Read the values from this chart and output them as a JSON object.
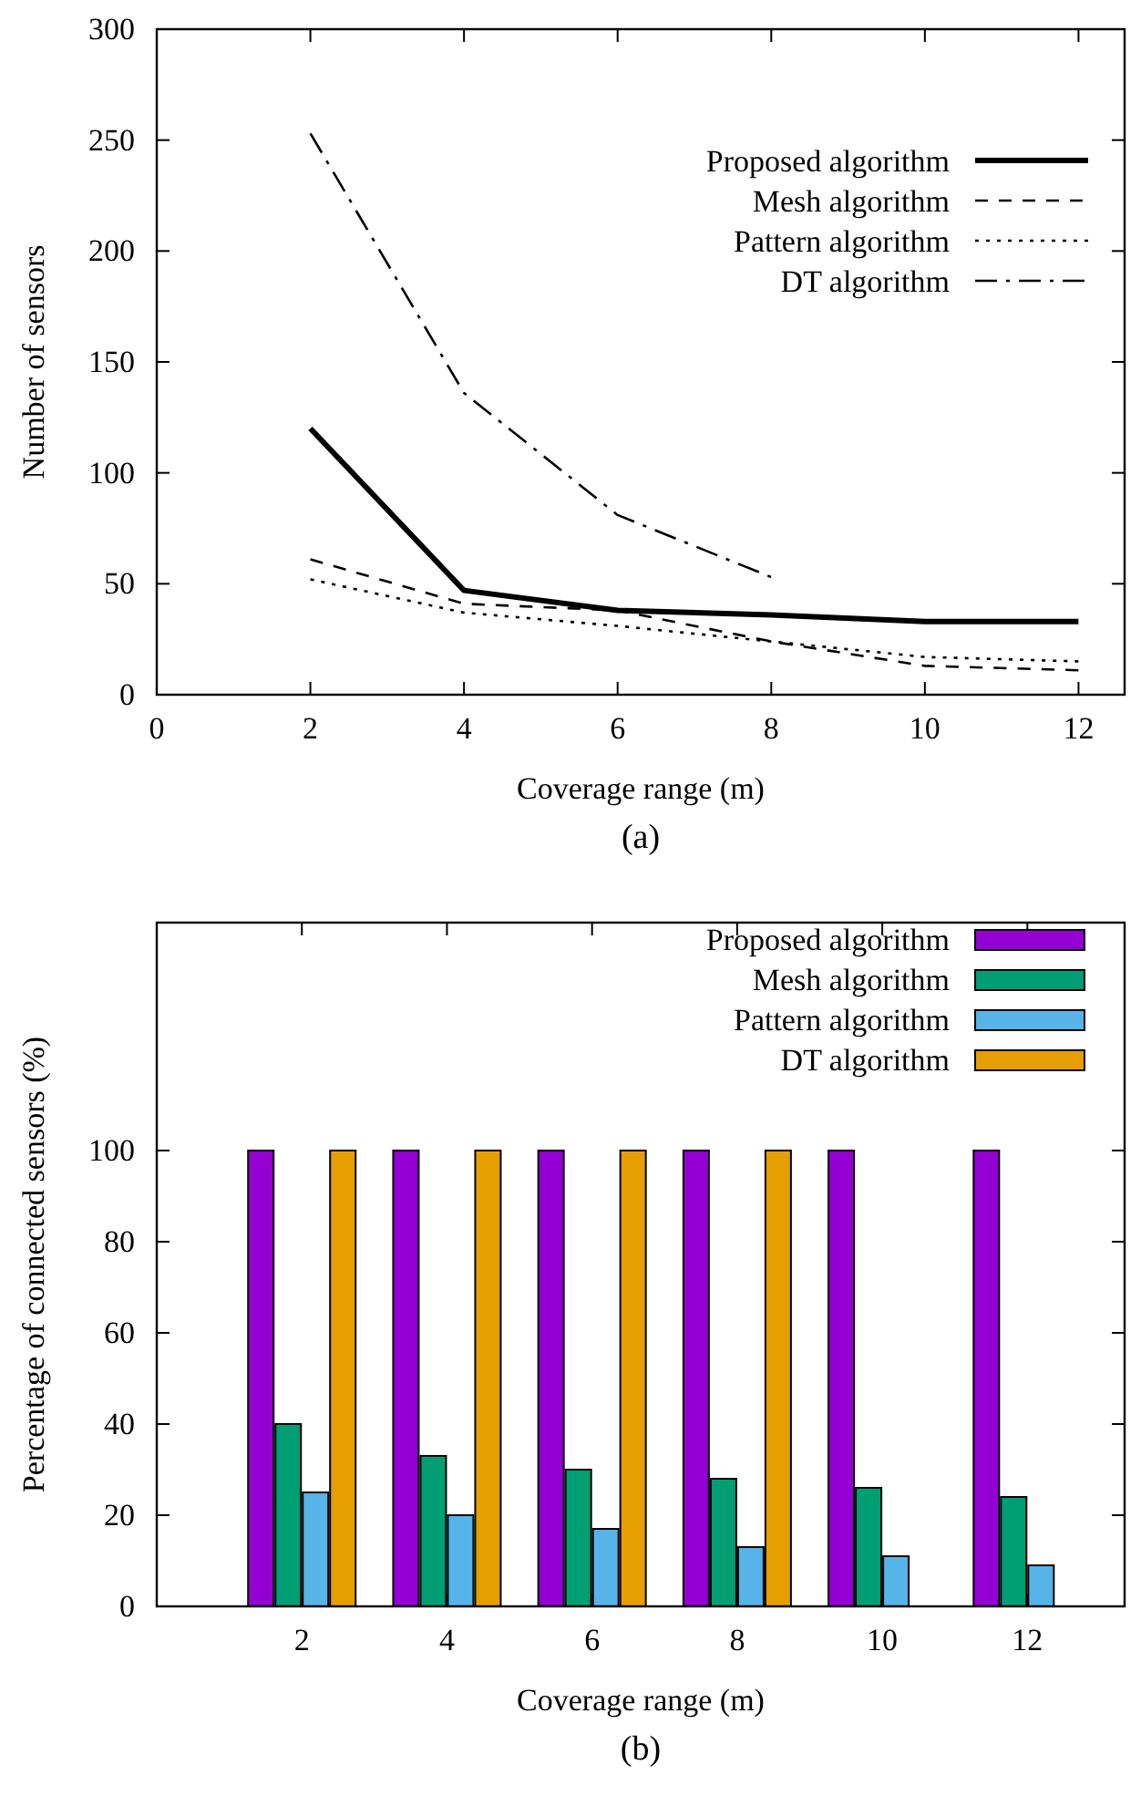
{
  "chart_data": [
    {
      "type": "line",
      "xlabel": "Coverage range (m)",
      "ylabel": "Number of sensors",
      "x": [
        2,
        4,
        6,
        8,
        10,
        12
      ],
      "series": [
        {
          "name": "Proposed algorithm",
          "color": "#000000",
          "line_style": "solid",
          "values": [
            120,
            47,
            38,
            36,
            33,
            33
          ]
        },
        {
          "name": "Mesh algorithm",
          "color": "#000000",
          "line_style": "dashed",
          "values": [
            61,
            41,
            38,
            24,
            13,
            11
          ]
        },
        {
          "name": "Pattern algorithm",
          "color": "#000000",
          "line_style": "dotted",
          "values": [
            52,
            37,
            31,
            24,
            17,
            15
          ]
        },
        {
          "name": "DT algorithm",
          "color": "#000000",
          "line_style": "dashdot",
          "values": [
            253,
            136,
            81,
            53,
            null,
            null
          ]
        }
      ],
      "xlim": [
        0,
        12.6
      ],
      "xticks": [
        0,
        2,
        4,
        6,
        8,
        10,
        12
      ],
      "ylim": [
        0,
        300
      ],
      "yticks": [
        0,
        50,
        100,
        150,
        200,
        250,
        300
      ],
      "legend": "top right",
      "marker": "none",
      "annotations": [
        "(a)"
      ]
    },
    {
      "type": "bar",
      "xlabel": "Coverage range (m)",
      "ylabel": "Percentage of connected sensors (%)",
      "categories": [
        "2",
        "4",
        "6",
        "8",
        "10",
        "12"
      ],
      "series": [
        {
          "name": "Proposed algorithm",
          "color": "#9400d3",
          "values": [
            100,
            100,
            100,
            100,
            100,
            100
          ]
        },
        {
          "name": "Mesh algorithm",
          "color": "#009e73",
          "values": [
            40,
            33,
            30,
            28,
            26,
            24
          ]
        },
        {
          "name": "Pattern algorithm",
          "color": "#56b4e9",
          "values": [
            25,
            20,
            17,
            13,
            11,
            9
          ]
        },
        {
          "name": "DT algorithm",
          "color": "#e69f00",
          "values": [
            100,
            100,
            100,
            100,
            null,
            null
          ]
        }
      ],
      "ylim": [
        0,
        150
      ],
      "yticks": [
        0,
        20,
        40,
        60,
        80,
        100
      ],
      "legend": "top right",
      "annotations": [
        "(b)"
      ]
    }
  ]
}
